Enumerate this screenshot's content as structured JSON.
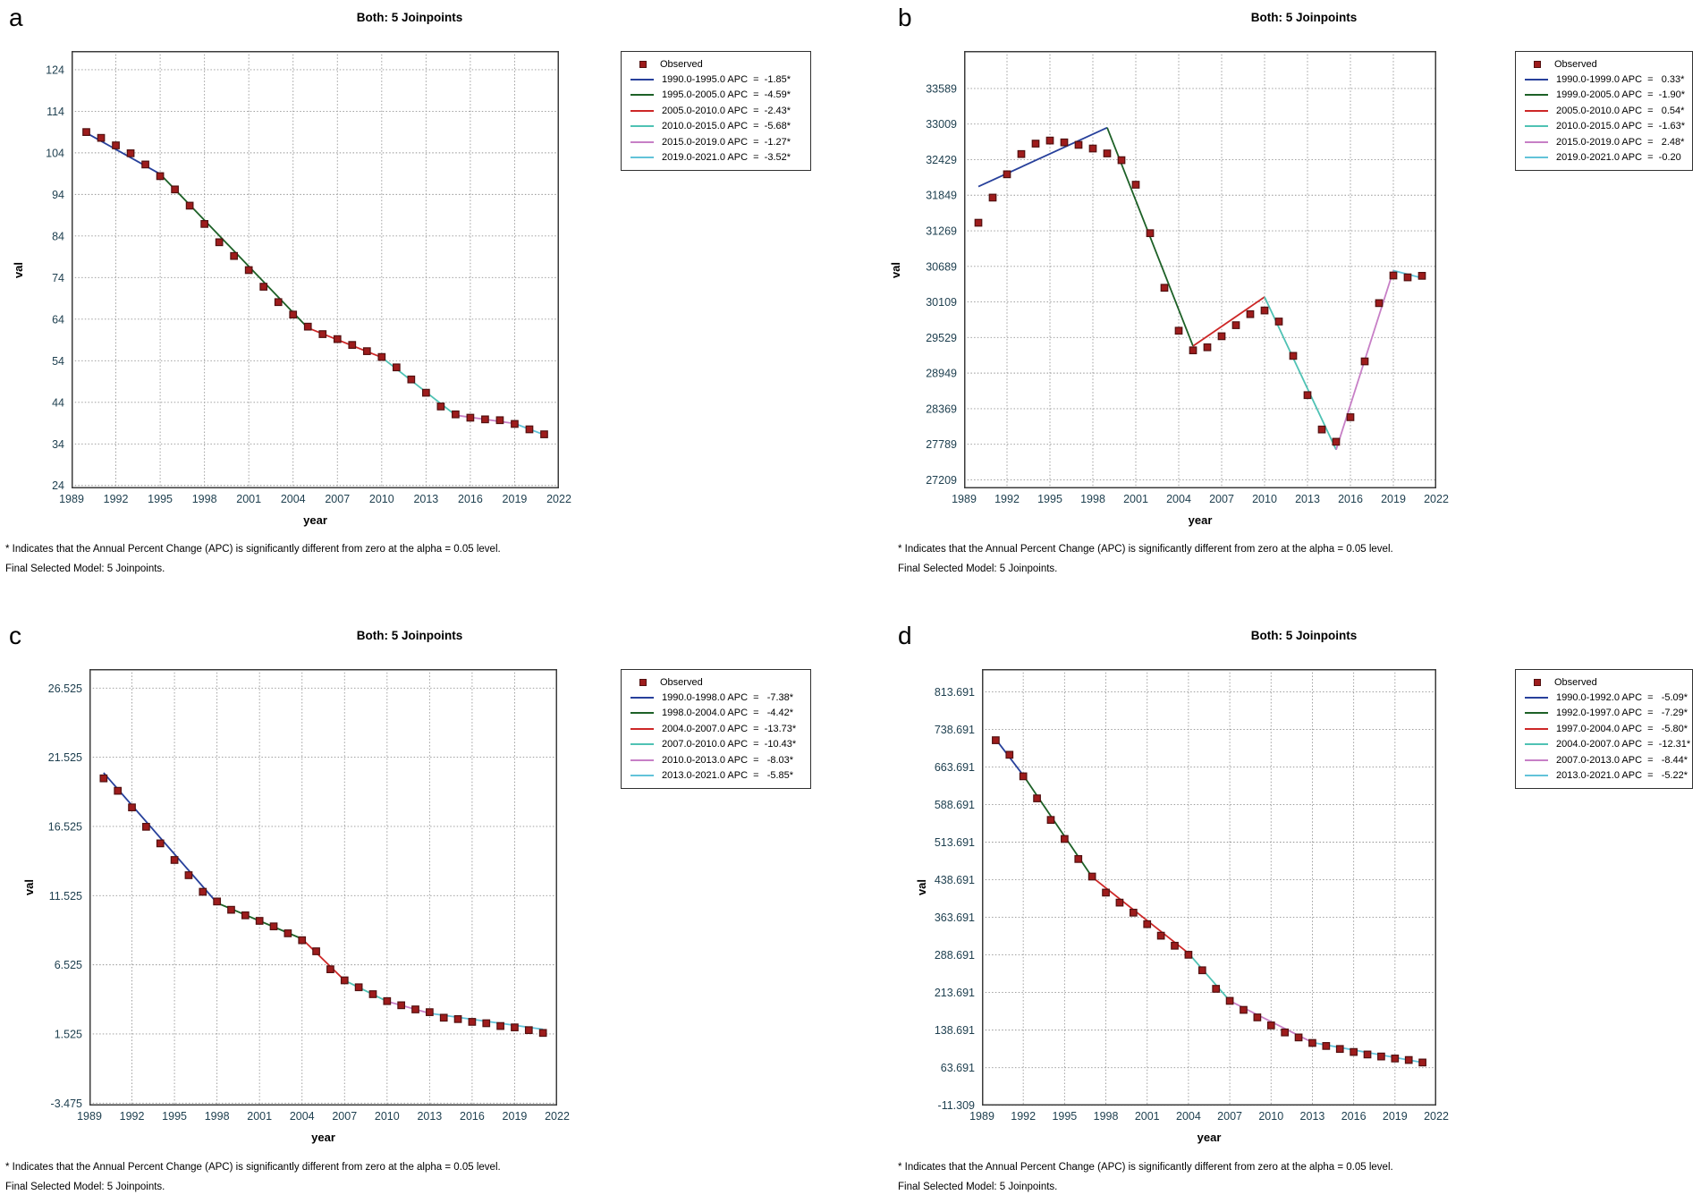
{
  "footnote": {
    "line1": "* Indicates that the Annual Percent Change (APC) is significantly different from zero at the alpha = 0.05 level.",
    "line2": "Final Selected Model: 5 Joinpoints."
  },
  "colors": {
    "observed_fill": "#9e1c1c",
    "observed_border": "#521010",
    "segment_blue": "#27409b",
    "segment_green": "#1d6127",
    "segment_red": "#cd2727",
    "segment_teal": "#4fc2b4",
    "segment_pink": "#c77fc6",
    "segment_cyan": "#62c3d9",
    "tick_label": "#1f4050"
  },
  "chart_data": [
    {
      "type": "scatter+line",
      "panel_label": "a",
      "title": "Both: 5 Joinpoints",
      "xlabel": "year",
      "ylabel": "val",
      "xlim": [
        1989,
        2022
      ],
      "ylim": [
        23.3,
        128.5
      ],
      "x_ticks": [
        1989,
        1992,
        1995,
        1998,
        2001,
        2004,
        2007,
        2010,
        2013,
        2016,
        2019,
        2022
      ],
      "y_ticks": {
        "labels": [
          "124",
          "114",
          "104",
          "94",
          "84",
          "74",
          "64",
          "54",
          "44",
          "34",
          "24"
        ],
        "values": [
          124,
          114,
          104,
          94,
          84,
          74,
          64,
          54,
          44,
          34,
          24
        ]
      },
      "observed": {
        "name": "Observed",
        "years": [
          1990,
          1991,
          1992,
          1993,
          1994,
          1995,
          1996,
          1997,
          1998,
          1999,
          2000,
          2001,
          2002,
          2003,
          2004,
          2005,
          2006,
          2007,
          2008,
          2009,
          2010,
          2011,
          2012,
          2013,
          2014,
          2015,
          2016,
          2017,
          2018,
          2019,
          2020,
          2021
        ],
        "values": [
          109.0,
          107.6,
          105.8,
          103.9,
          101.2,
          98.4,
          95.2,
          91.3,
          86.9,
          82.5,
          79.2,
          75.8,
          71.8,
          68.1,
          65.1,
          62.2,
          60.4,
          59.2,
          57.8,
          56.3,
          54.9,
          52.4,
          49.5,
          46.3,
          43.0,
          41.1,
          40.3,
          39.9,
          39.7,
          38.8,
          37.5,
          36.3
        ]
      },
      "segments": [
        {
          "period": "1990.0-1995.0",
          "apc": "-1.85*",
          "legend_text": "1990.0-1995.0 APC  =  -1.85*",
          "color": "#27409b",
          "x1": 1990,
          "y1": 108.8,
          "x2": 1995,
          "y2": 98.9
        },
        {
          "period": "1995.0-2005.0",
          "apc": "-4.59*",
          "legend_text": "1995.0-2005.0 APC  =  -4.59*",
          "color": "#1d6127",
          "x1": 1995,
          "y1": 98.9,
          "x2": 2005,
          "y2": 61.9
        },
        {
          "period": "2005.0-2010.0",
          "apc": "-2.43*",
          "legend_text": "2005.0-2010.0 APC  =  -2.43*",
          "color": "#cd2727",
          "x1": 2005,
          "y1": 61.9,
          "x2": 2010,
          "y2": 54.8
        },
        {
          "period": "2010.0-2015.0",
          "apc": "-5.68*",
          "legend_text": "2010.0-2015.0 APC  =  -5.68*",
          "color": "#4fc2b4",
          "x1": 2010,
          "y1": 54.8,
          "x2": 2015,
          "y2": 40.9
        },
        {
          "period": "2015.0-2019.0",
          "apc": "-1.27*",
          "legend_text": "2015.0-2019.0 APC  =  -1.27*",
          "color": "#c77fc6",
          "x1": 2015,
          "y1": 40.9,
          "x2": 2019,
          "y2": 38.9
        },
        {
          "period": "2019.0-2021.0",
          "apc": "-3.52*",
          "legend_text": "2019.0-2021.0 APC  =  -3.52*",
          "color": "#62c3d9",
          "x1": 2019,
          "y1": 38.9,
          "x2": 2021,
          "y2": 36.2
        }
      ]
    },
    {
      "type": "scatter+line",
      "panel_label": "b",
      "title": "Both: 5 Joinpoints",
      "xlabel": "year",
      "ylabel": "val",
      "xlim": [
        1989,
        2022
      ],
      "ylim": [
        27070,
        34200
      ],
      "x_ticks": [
        1989,
        1992,
        1995,
        1998,
        2001,
        2004,
        2007,
        2010,
        2013,
        2016,
        2019,
        2022
      ],
      "y_ticks": {
        "labels": [
          "33589",
          "33009",
          "32429",
          "31849",
          "31269",
          "30689",
          "30109",
          "29529",
          "28949",
          "28369",
          "27789",
          "27209"
        ],
        "values": [
          33589,
          33009,
          32429,
          31849,
          31269,
          30689,
          30109,
          29529,
          28949,
          28369,
          27789,
          27209
        ]
      },
      "observed": {
        "name": "Observed",
        "years": [
          1990,
          1991,
          1992,
          1993,
          1994,
          1995,
          1996,
          1997,
          1998,
          1999,
          2000,
          2001,
          2002,
          2003,
          2004,
          2005,
          2006,
          2007,
          2008,
          2009,
          2010,
          2011,
          2012,
          2013,
          2014,
          2015,
          2016,
          2017,
          2018,
          2019,
          2020,
          2021
        ],
        "values": [
          31400,
          31810,
          32190,
          32520,
          32690,
          32740,
          32710,
          32670,
          32610,
          32530,
          32420,
          32020,
          31230,
          30340,
          29640,
          29320,
          29370,
          29550,
          29730,
          29910,
          29970,
          29790,
          29230,
          28590,
          28030,
          27830,
          28230,
          29140,
          30090,
          30540,
          30510,
          30535
        ]
      },
      "segments": [
        {
          "period": "1990.0-1999.0",
          "apc": "0.33*",
          "legend_text": "1990.0-1999.0 APC  =   0.33*",
          "color": "#27409b",
          "x1": 1990,
          "y1": 31990,
          "x2": 1999,
          "y2": 32950
        },
        {
          "period": "1999.0-2005.0",
          "apc": "-1.90*",
          "legend_text": "1999.0-2005.0 APC  =  -1.90*",
          "color": "#1d6127",
          "x1": 1999,
          "y1": 32950,
          "x2": 2005,
          "y2": 29390
        },
        {
          "period": "2005.0-2010.0",
          "apc": "0.54*",
          "legend_text": "2005.0-2010.0 APC  =   0.54*",
          "color": "#cd2727",
          "x1": 2005,
          "y1": 29390,
          "x2": 2010,
          "y2": 30190
        },
        {
          "period": "2010.0-2015.0",
          "apc": "-1.63*",
          "legend_text": "2010.0-2015.0 APC  =  -1.63*",
          "color": "#4fc2b4",
          "x1": 2010,
          "y1": 30190,
          "x2": 2015,
          "y2": 27700
        },
        {
          "period": "2015.0-2019.0",
          "apc": "2.48*",
          "legend_text": "2015.0-2019.0 APC  =   2.48*",
          "color": "#c77fc6",
          "x1": 2015,
          "y1": 27700,
          "x2": 2019,
          "y2": 30620
        },
        {
          "period": "2019.0-2021.0",
          "apc": "-0.20",
          "legend_text": "2019.0-2021.0 APC  =  -0.20",
          "color": "#62c3d9",
          "x1": 2019,
          "y1": 30620,
          "x2": 2021,
          "y2": 30500
        }
      ]
    },
    {
      "type": "scatter+line",
      "panel_label": "c",
      "title": "Both: 5 Joinpoints",
      "xlabel": "year",
      "ylabel": "val",
      "xlim": [
        1989,
        2022
      ],
      "ylim": [
        -3.65,
        27.9
      ],
      "x_ticks": [
        1989,
        1992,
        1995,
        1998,
        2001,
        2004,
        2007,
        2010,
        2013,
        2016,
        2019,
        2022
      ],
      "y_ticks": {
        "labels": [
          "26.525",
          "21.525",
          "16.525",
          "11.525",
          "6.525",
          "1.525",
          "-3.475"
        ],
        "values": [
          26.525,
          21.525,
          16.525,
          11.525,
          6.525,
          1.525,
          -3.475
        ]
      },
      "observed": {
        "name": "Observed",
        "years": [
          1990,
          1991,
          1992,
          1993,
          1994,
          1995,
          1996,
          1997,
          1998,
          1999,
          2000,
          2001,
          2002,
          2003,
          2004,
          2005,
          2006,
          2007,
          2008,
          2009,
          2010,
          2011,
          2012,
          2013,
          2014,
          2015,
          2016,
          2017,
          2018,
          2019,
          2020,
          2021
        ],
        "values": [
          20.0,
          19.1,
          17.9,
          16.5,
          15.3,
          14.1,
          13.0,
          11.8,
          11.1,
          10.5,
          10.1,
          9.7,
          9.3,
          8.8,
          8.3,
          7.5,
          6.2,
          5.4,
          4.9,
          4.4,
          3.9,
          3.6,
          3.3,
          3.1,
          2.7,
          2.6,
          2.4,
          2.3,
          2.1,
          2.0,
          1.8,
          1.6
        ]
      },
      "segments": [
        {
          "period": "1990.0-1998.0",
          "apc": "-7.38*",
          "legend_text": "1990.0-1998.0 APC  =   -7.38*",
          "color": "#27409b",
          "x1": 1990,
          "y1": 20.4,
          "x2": 1998,
          "y2": 11.0
        },
        {
          "period": "1998.0-2004.0",
          "apc": "-4.42*",
          "legend_text": "1998.0-2004.0 APC  =   -4.42*",
          "color": "#1d6127",
          "x1": 1998,
          "y1": 11.0,
          "x2": 2004,
          "y2": 8.4
        },
        {
          "period": "2004.0-2007.0",
          "apc": "-13.73*",
          "legend_text": "2004.0-2007.0 APC  =  -13.73*",
          "color": "#cd2727",
          "x1": 2004,
          "y1": 8.4,
          "x2": 2007,
          "y2": 5.4
        },
        {
          "period": "2007.0-2010.0",
          "apc": "-10.43*",
          "legend_text": "2007.0-2010.0 APC  =  -10.43*",
          "color": "#4fc2b4",
          "x1": 2007,
          "y1": 5.4,
          "x2": 2010,
          "y2": 3.88
        },
        {
          "period": "2010.0-2013.0",
          "apc": "-8.03*",
          "legend_text": "2010.0-2013.0 APC  =   -8.03*",
          "color": "#c77fc6",
          "x1": 2010,
          "y1": 3.88,
          "x2": 2013,
          "y2": 3.02
        },
        {
          "period": "2013.0-2021.0",
          "apc": "-5.85*",
          "legend_text": "2013.0-2021.0 APC  =   -5.85*",
          "color": "#62c3d9",
          "x1": 2013,
          "y1": 3.02,
          "x2": 2021,
          "y2": 1.86
        }
      ]
    },
    {
      "type": "scatter+line",
      "panel_label": "d",
      "title": "Both: 5 Joinpoints",
      "xlabel": "year",
      "ylabel": "val",
      "xlim": [
        1989,
        2022
      ],
      "ylim": [
        -11.9,
        859
      ],
      "x_ticks": [
        1989,
        1992,
        1995,
        1998,
        2001,
        2004,
        2007,
        2010,
        2013,
        2016,
        2019,
        2022
      ],
      "y_ticks": {
        "labels": [
          "813.691",
          "738.691",
          "663.691",
          "588.691",
          "513.691",
          "438.691",
          "363.691",
          "288.691",
          "213.691",
          "138.691",
          "63.691",
          "-11.309"
        ],
        "values": [
          813.691,
          738.691,
          663.691,
          588.691,
          513.691,
          438.691,
          363.691,
          288.691,
          213.691,
          138.691,
          63.691,
          -11.309
        ]
      },
      "observed": {
        "name": "Observed",
        "years": [
          1990,
          1991,
          1992,
          1993,
          1994,
          1995,
          1996,
          1997,
          1998,
          1999,
          2000,
          2001,
          2002,
          2003,
          2004,
          2005,
          2006,
          2007,
          2008,
          2009,
          2010,
          2011,
          2012,
          2013,
          2014,
          2015,
          2016,
          2017,
          2018,
          2019,
          2020,
          2021
        ],
        "values": [
          717,
          688,
          645,
          601,
          558,
          520,
          480,
          445,
          413,
          393,
          373,
          350,
          327,
          307,
          289,
          258,
          221,
          197,
          179,
          164,
          148,
          134,
          124,
          113,
          107,
          101,
          95,
          90,
          86,
          82,
          79,
          74
        ]
      },
      "segments": [
        {
          "period": "1990.0-1992.0",
          "apc": "-5.09*",
          "legend_text": "1990.0-1992.0 APC  =   -5.09*",
          "color": "#27409b",
          "x1": 1990,
          "y1": 719,
          "x2": 1992,
          "y2": 647
        },
        {
          "period": "1992.0-1997.0",
          "apc": "-7.29*",
          "legend_text": "1992.0-1997.0 APC  =   -7.29*",
          "color": "#1d6127",
          "x1": 1992,
          "y1": 647,
          "x2": 1997,
          "y2": 444
        },
        {
          "period": "1997.0-2004.0",
          "apc": "-5.80*",
          "legend_text": "1997.0-2004.0 APC  =   -5.80*",
          "color": "#cd2727",
          "x1": 1997,
          "y1": 444,
          "x2": 2004,
          "y2": 292
        },
        {
          "period": "2004.0-2007.0",
          "apc": "-12.31*",
          "legend_text": "2004.0-2007.0 APC  =  -12.31*",
          "color": "#4fc2b4",
          "x1": 2004,
          "y1": 292,
          "x2": 2007,
          "y2": 197
        },
        {
          "period": "2007.0-2013.0",
          "apc": "-8.44*",
          "legend_text": "2007.0-2013.0 APC  =   -8.44*",
          "color": "#c77fc6",
          "x1": 2007,
          "y1": 197,
          "x2": 2013,
          "y2": 114
        },
        {
          "period": "2013.0-2021.0",
          "apc": "-5.22*",
          "legend_text": "2013.0-2021.0 APC  =   -5.22*",
          "color": "#62c3d9",
          "x1": 2013,
          "y1": 114,
          "x2": 2021,
          "y2": 74
        }
      ]
    }
  ]
}
